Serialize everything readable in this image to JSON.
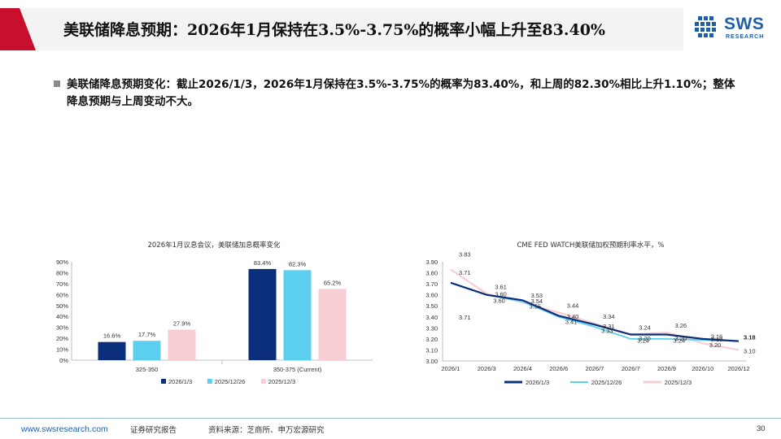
{
  "header": {
    "title": "美联储降息预期：2026年1月保持在3.5%-3.75%的概率小幅上升至83.40%",
    "logo_text": "SWS",
    "logo_sub": "RESEARCH"
  },
  "bullet": {
    "text": "美联储降息预期变化：截止2026/1/3，2026年1月保持在3.5%-3.75%的概率为83.40%，和上周的82.30%相比上升1.10%；整体降息预期与上周变动不大。"
  },
  "colors": {
    "series1": "#0b2f7a",
    "series2": "#5ccfee",
    "series3": "#f7cfd3",
    "accent": "#c8102e"
  },
  "chart_data": [
    {
      "type": "bar",
      "title": "2026年1月议息会议，美联储加息概率变化",
      "categories": [
        "325-350",
        "350-375 (Current)"
      ],
      "ylim": [
        0,
        90
      ],
      "yticks": [
        "0%",
        "10%",
        "20%",
        "30%",
        "40%",
        "50%",
        "60%",
        "70%",
        "80%",
        "90%"
      ],
      "series": [
        {
          "name": "2026/1/3",
          "values": [
            16.6,
            83.4
          ],
          "labels": [
            "16.6%",
            "83.4%"
          ]
        },
        {
          "name": "2025/12/26",
          "values": [
            17.7,
            82.3
          ],
          "labels": [
            "17.7%",
            "82.3%"
          ]
        },
        {
          "name": "2025/12/3",
          "values": [
            27.9,
            65.2
          ],
          "labels": [
            "27.9%",
            "65.2%"
          ]
        }
      ],
      "legend": "bottom"
    },
    {
      "type": "line",
      "title": "CME FED WATCH美联储加权预期利率水平，%",
      "x": [
        "2026/1",
        "2026/3",
        "2026/4",
        "2026/6",
        "2026/7",
        "2026/7",
        "2026/9",
        "2026/10",
        "2026/12"
      ],
      "ylim": [
        3.0,
        3.9
      ],
      "yticks": [
        "3.00",
        "3.10",
        "3.20",
        "3.30",
        "3.40",
        "3.50",
        "3.60",
        "3.70",
        "3.80",
        "3.90"
      ],
      "series": [
        {
          "name": "2026/1/3",
          "values": [
            3.71,
            3.6,
            3.55,
            3.41,
            3.33,
            3.24,
            3.24,
            3.2,
            3.18
          ],
          "labels": [
            "",
            "3.60",
            "3.55",
            "3.41",
            "3.33",
            "3.24",
            "3.24",
            "3.20",
            "3.18"
          ]
        },
        {
          "name": "2025/12/26",
          "values": [
            3.71,
            3.6,
            3.54,
            3.4,
            3.31,
            3.2,
            3.2,
            3.19,
            3.18
          ],
          "labels": [
            "3.71",
            "3.60",
            "3.54",
            "3.40",
            "3.31",
            "3.20",
            "3.20",
            "3.19",
            "3.18"
          ]
        },
        {
          "name": "2025/12/3",
          "values": [
            3.83,
            3.61,
            3.53,
            3.44,
            3.34,
            3.24,
            3.26,
            3.16,
            3.1
          ],
          "labels": [
            "3.83",
            "3.61",
            "3.53",
            "3.44",
            "3.34",
            "3.24",
            "3.26",
            "3.16",
            "3.10"
          ]
        }
      ],
      "extra_label": "3.71",
      "legend": "bottom"
    }
  ],
  "footer": {
    "url": "www.swsresearch.com",
    "report": "证券研究报告",
    "source": "资料来源：芝商所、申万宏源研究",
    "page": "30"
  }
}
